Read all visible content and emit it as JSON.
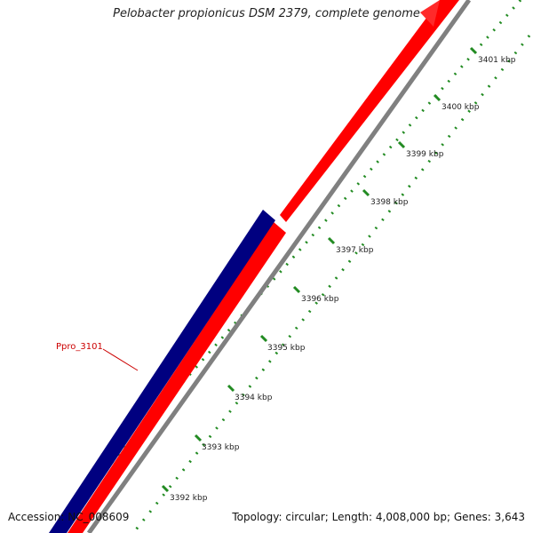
{
  "title": "Pelobacter propionicus DSM 2379, complete genome",
  "footer": {
    "accession": "Accession: NC_008609",
    "summary": "Topology: circular; Length: 4,008,000 bp; Genes: 3,643"
  },
  "gene_label": "Ppro_3101",
  "ruler": {
    "unit": "kbp",
    "labels": [
      "3392 kbp",
      "3393 kbp",
      "3394 kbp",
      "3395 kbp",
      "3396 kbp",
      "3397 kbp",
      "3398 kbp",
      "3399 kbp",
      "3400 kbp",
      "3401 kbp"
    ]
  },
  "colors": {
    "forward_gene": "#ff0000",
    "reverse_gene": "#000080",
    "backbone": "#808080",
    "ticks": "#228b22",
    "gene_label": "#cc0000"
  }
}
